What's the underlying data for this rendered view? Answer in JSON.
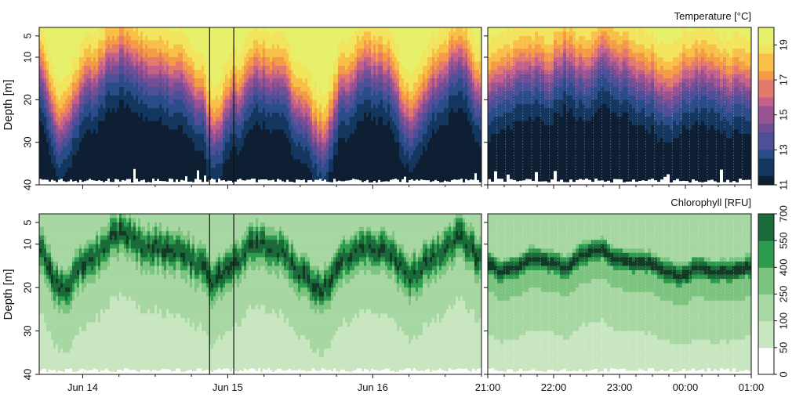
{
  "chart_data": [
    {
      "type": "heatmap",
      "panel": "top-left",
      "variable": "temperature",
      "ylabel": "Depth [m]",
      "yticks": [
        5,
        10,
        20,
        30,
        40
      ],
      "ylim": [
        40,
        3
      ],
      "xticks": [
        "Jun 14",
        "Jun 15",
        "Jun 16"
      ],
      "xlim_days": [
        13.7,
        16.75
      ],
      "marked_window": [
        "Jun 14 21:00",
        "Jun 15 01:00"
      ],
      "thermocline_depth_m": {
        "t_days": [
          13.7,
          13.85,
          14.05,
          14.25,
          14.45,
          14.65,
          14.8,
          14.9,
          15.05,
          15.2,
          15.35,
          15.5,
          15.65,
          15.8,
          15.95,
          16.1,
          16.25,
          16.45,
          16.6,
          16.75
        ],
        "depth": [
          14,
          26,
          15,
          9,
          12,
          14,
          19,
          27,
          20,
          13,
          15,
          22,
          29,
          17,
          12,
          13,
          24,
          15,
          9,
          18
        ]
      }
    },
    {
      "type": "heatmap",
      "panel": "top-right",
      "variable": "temperature",
      "xticks": [
        "21:00",
        "22:00",
        "23:00",
        "00:00",
        "01:00"
      ],
      "xlim_hours": [
        21,
        25
      ],
      "ylim": [
        40,
        3
      ],
      "thermocline_depth_m": {
        "t_hours": [
          21,
          21.3,
          21.6,
          21.9,
          22.2,
          22.5,
          22.8,
          23.1,
          23.4,
          23.7,
          24.0,
          24.3,
          24.6,
          25
        ],
        "depth": [
          16,
          14,
          12,
          13,
          10,
          13,
          9,
          12,
          14,
          17,
          15,
          13,
          16,
          15
        ]
      }
    },
    {
      "type": "heatmap",
      "panel": "bottom-left",
      "variable": "chlorophyll",
      "ylabel": "Depth [m]",
      "yticks": [
        5,
        10,
        20,
        30,
        40
      ],
      "ylim": [
        40,
        3
      ],
      "xticks": [
        "Jun 14",
        "Jun 15",
        "Jun 16"
      ],
      "xlim_days": [
        13.7,
        16.75
      ],
      "chl_max_depth_m": {
        "t_days": [
          13.7,
          13.85,
          14.05,
          14.25,
          14.45,
          14.65,
          14.8,
          14.9,
          15.05,
          15.2,
          15.35,
          15.5,
          15.65,
          15.8,
          15.95,
          16.1,
          16.25,
          16.45,
          16.6,
          16.75
        ],
        "depth": [
          11,
          20,
          13,
          7,
          10,
          11,
          14,
          18,
          14,
          9,
          11,
          16,
          20,
          13,
          10,
          11,
          17,
          12,
          8,
          13
        ]
      }
    },
    {
      "type": "heatmap",
      "panel": "bottom-right",
      "variable": "chlorophyll",
      "xticks": [
        "21:00",
        "22:00",
        "23:00",
        "00:00",
        "01:00"
      ],
      "xlim_hours": [
        21,
        25
      ],
      "ylim": [
        40,
        3
      ],
      "chl_max_depth_m": {
        "t_hours": [
          21,
          21.2,
          21.45,
          21.7,
          21.95,
          22.2,
          22.45,
          22.7,
          22.95,
          23.2,
          23.45,
          23.7,
          23.95,
          24.2,
          24.45,
          24.7,
          25
        ],
        "depth": [
          14,
          16,
          15,
          13,
          14,
          15,
          12,
          11,
          13,
          14,
          14,
          16,
          17,
          15,
          16,
          16,
          15
        ]
      }
    }
  ],
  "colorbars": {
    "temperature": {
      "title": "Temperature [°C]",
      "ticks": [
        "11",
        "13",
        "15",
        "17",
        "19"
      ],
      "tick_values": [
        11,
        13,
        15,
        17,
        19
      ],
      "range": [
        11,
        20
      ],
      "colors": [
        "#0f1f33",
        "#14375f",
        "#2a4d8a",
        "#4d4f98",
        "#714f96",
        "#9a5392",
        "#c4618a",
        "#e37a6c",
        "#f59a47",
        "#f8c048",
        "#f2e45c",
        "#e6f06a"
      ]
    },
    "chlorophyll": {
      "title": "Chlorophyll [RFU]",
      "ticks": [
        "0",
        "50",
        "100",
        "250",
        "400",
        "550",
        "700"
      ],
      "levels": [
        0,
        50,
        100,
        250,
        400,
        550,
        700
      ],
      "colors": [
        "#ffffff",
        "#c8e6c0",
        "#a7d7a2",
        "#7cc47f",
        "#2e9c4f",
        "#1a6a3a",
        "#133a24"
      ]
    }
  }
}
